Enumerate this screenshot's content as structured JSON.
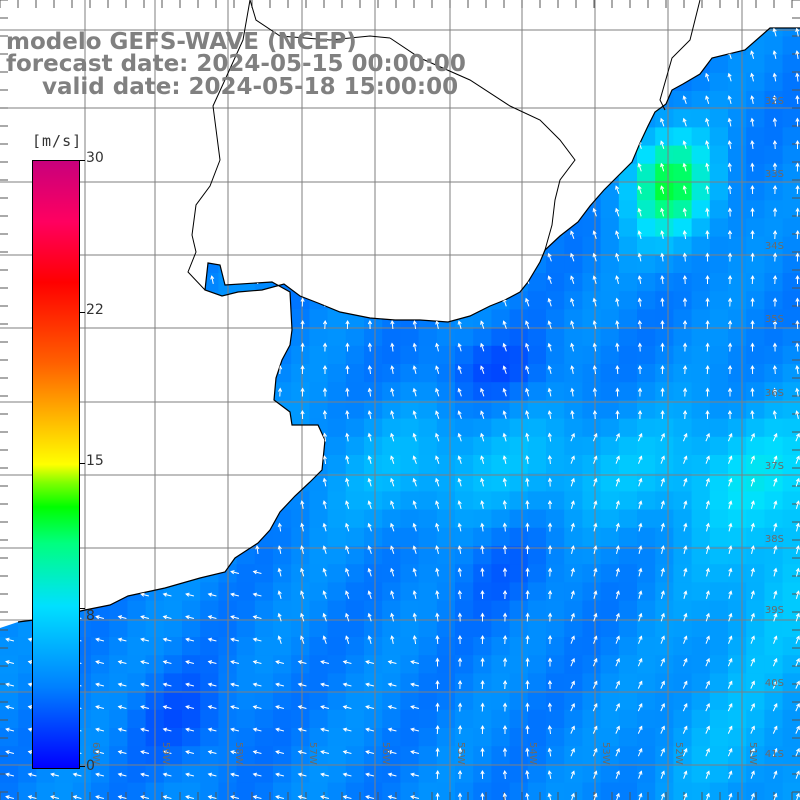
{
  "title": {
    "line1": "modelo GEFS-WAVE (NCEP)",
    "line2": "forecast date: 2024-05-15 00:00:00",
    "line3": "valid date: 2024-05-18 15:00:00"
  },
  "colorbar": {
    "unit": "[m/s]",
    "ticks": [
      "30",
      "22",
      "15",
      "8",
      "0"
    ],
    "tick_values": [
      30,
      22,
      15,
      8,
      0
    ],
    "min": 0,
    "max": 30
  },
  "map": {
    "lat_labels": [
      "32S",
      "33S",
      "34S",
      "35S",
      "36S",
      "37S",
      "38S",
      "39S",
      "40S",
      "41S"
    ],
    "lon_labels": [
      "60W",
      "59W",
      "58W",
      "57W",
      "56W",
      "55W",
      "54W",
      "53W",
      "52W",
      "51W"
    ],
    "colors": {
      "land": "#ffffff",
      "grid": "#808080",
      "coast": "#000000",
      "vectors": "#ffffff"
    }
  }
}
